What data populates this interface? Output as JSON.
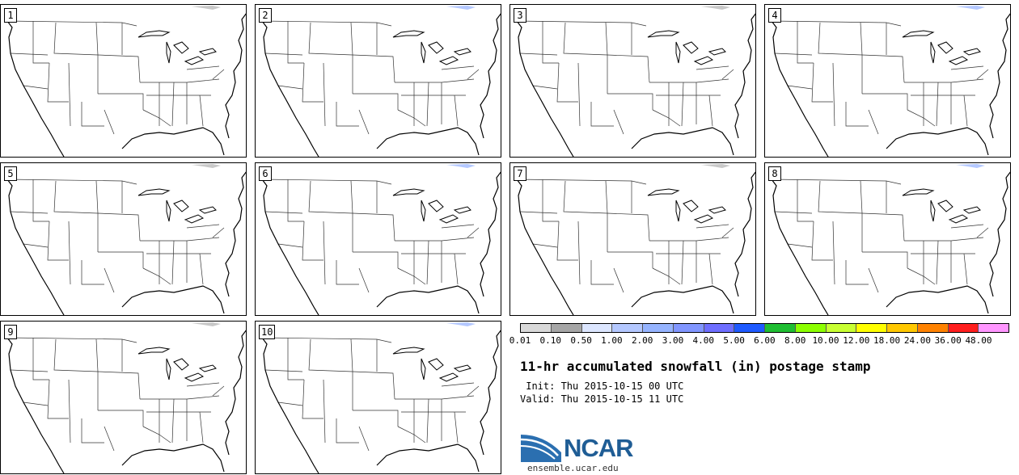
{
  "map": {
    "panels": [
      {
        "label": "1"
      },
      {
        "label": "2"
      },
      {
        "label": "3"
      },
      {
        "label": "4"
      },
      {
        "label": "5"
      },
      {
        "label": "6"
      },
      {
        "label": "7"
      },
      {
        "label": "8"
      },
      {
        "label": "9"
      },
      {
        "label": "10"
      }
    ],
    "region": "CONUS"
  },
  "colorbar": {
    "labels": [
      "0.01",
      "0.10",
      "0.50",
      "1.00",
      "2.00",
      "3.00",
      "4.00",
      "5.00",
      "6.00",
      "8.00",
      "10.00",
      "12.00",
      "18.00",
      "24.00",
      "36.00",
      "48.00"
    ],
    "colors": [
      "#d9d9d9",
      "#a6a6a6",
      "#dce6ff",
      "#b4c8ff",
      "#96b4ff",
      "#8196ff",
      "#6e6eff",
      "#1f5aff",
      "#1fbe32",
      "#8cff00",
      "#c8ff32",
      "#ffff00",
      "#ffc800",
      "#ff8200",
      "#ff1e1e",
      "#ff96ff"
    ]
  },
  "title": "11-hr accumulated snowfall (in) postage stamp",
  "init_line": " Init: Thu 2015-10-15 00 UTC",
  "valid_line": "Valid: Thu 2015-10-15 11 UTC",
  "logo": {
    "text": "NCAR",
    "site": "ensemble.ucar.edu"
  }
}
